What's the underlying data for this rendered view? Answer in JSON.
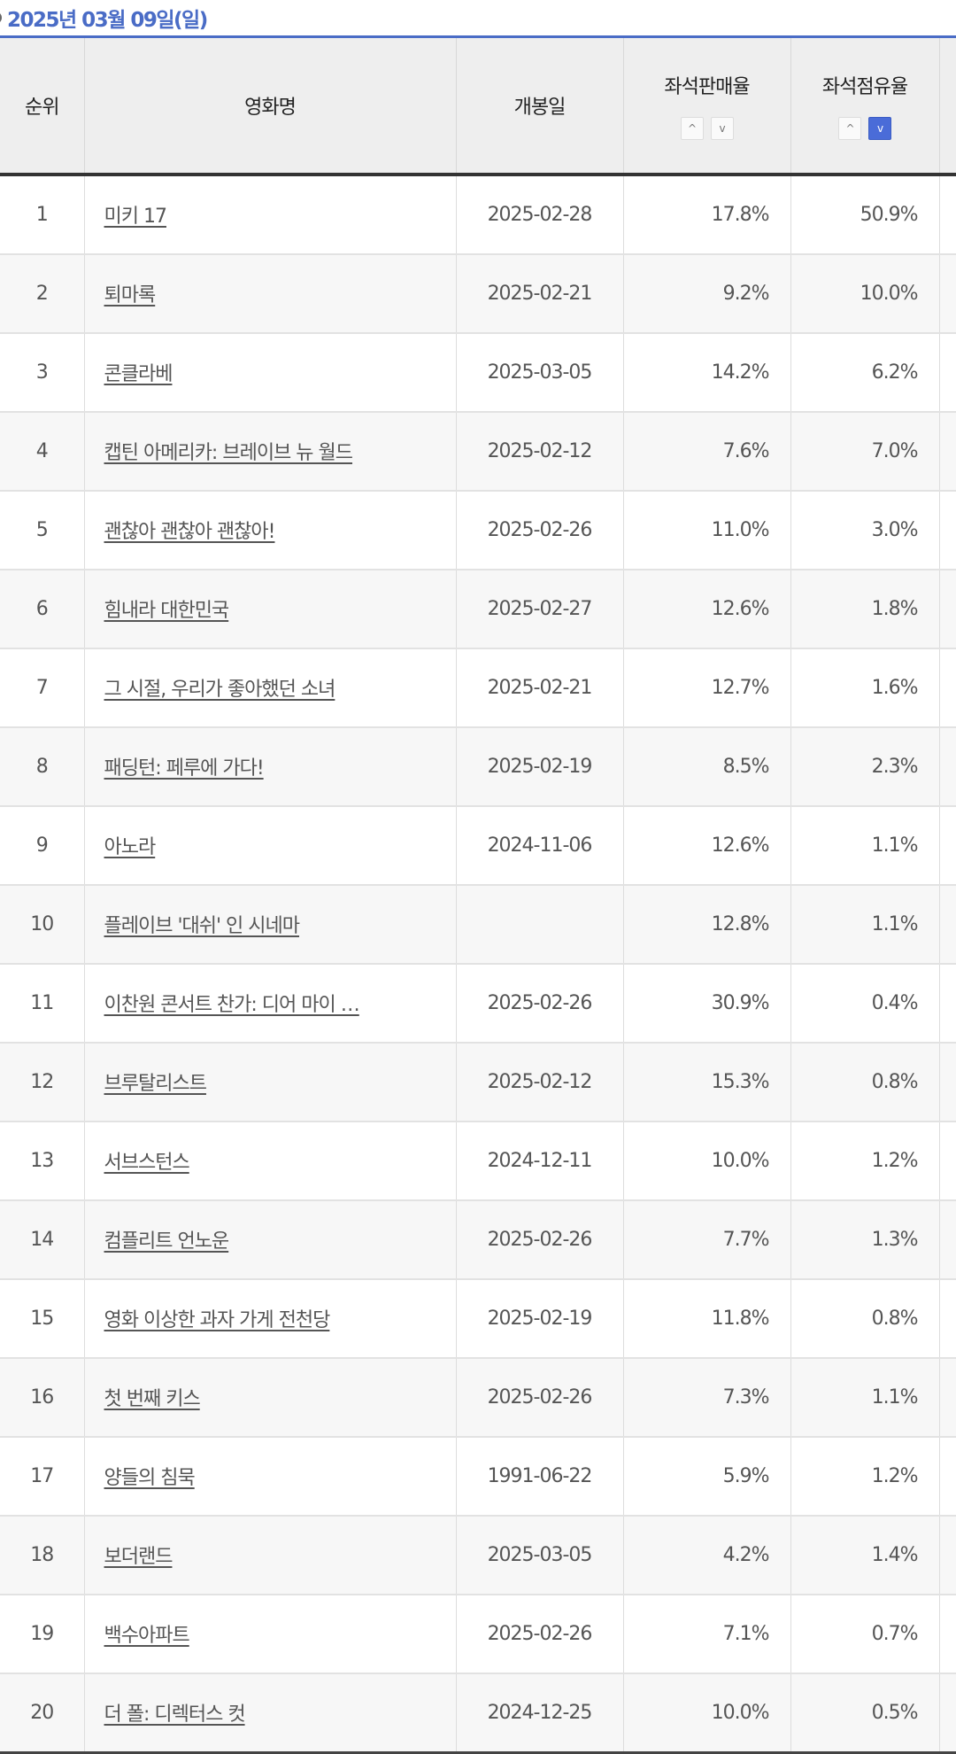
{
  "title": "2025년 03월 09일(일)",
  "headers": {
    "rank": "순위",
    "movie": "영화명",
    "release": "개봉일",
    "seat_sales": "좌석판매율",
    "seat_share": "좌석점유율"
  },
  "sort_icons": {
    "up": "^",
    "down": "v"
  },
  "rows": [
    {
      "rank": "1",
      "movie": "미키 17",
      "release": "2025-02-28",
      "seat_sales": "17.8%",
      "seat_share": "50.9%"
    },
    {
      "rank": "2",
      "movie": "퇴마록",
      "release": "2025-02-21",
      "seat_sales": "9.2%",
      "seat_share": "10.0%"
    },
    {
      "rank": "3",
      "movie": "콘클라베",
      "release": "2025-03-05",
      "seat_sales": "14.2%",
      "seat_share": "6.2%"
    },
    {
      "rank": "4",
      "movie": "캡틴 아메리카: 브레이브 뉴 월드",
      "release": "2025-02-12",
      "seat_sales": "7.6%",
      "seat_share": "7.0%"
    },
    {
      "rank": "5",
      "movie": "괜찮아 괜찮아 괜찮아!",
      "release": "2025-02-26",
      "seat_sales": "11.0%",
      "seat_share": "3.0%"
    },
    {
      "rank": "6",
      "movie": "힘내라 대한민국",
      "release": "2025-02-27",
      "seat_sales": "12.6%",
      "seat_share": "1.8%"
    },
    {
      "rank": "7",
      "movie": "그 시절, 우리가 좋아했던 소녀",
      "release": "2025-02-21",
      "seat_sales": "12.7%",
      "seat_share": "1.6%"
    },
    {
      "rank": "8",
      "movie": "패딩턴: 페루에 가다!",
      "release": "2025-02-19",
      "seat_sales": "8.5%",
      "seat_share": "2.3%"
    },
    {
      "rank": "9",
      "movie": "아노라",
      "release": "2024-11-06",
      "seat_sales": "12.6%",
      "seat_share": "1.1%"
    },
    {
      "rank": "10",
      "movie": "플레이브 '대쉬' 인 시네마",
      "release": "",
      "seat_sales": "12.8%",
      "seat_share": "1.1%"
    },
    {
      "rank": "11",
      "movie": "이찬원 콘서트 찬가: 디어 마이 …",
      "release": "2025-02-26",
      "seat_sales": "30.9%",
      "seat_share": "0.4%"
    },
    {
      "rank": "12",
      "movie": "브루탈리스트",
      "release": "2025-02-12",
      "seat_sales": "15.3%",
      "seat_share": "0.8%"
    },
    {
      "rank": "13",
      "movie": "서브스턴스",
      "release": "2024-12-11",
      "seat_sales": "10.0%",
      "seat_share": "1.2%"
    },
    {
      "rank": "14",
      "movie": "컴플리트 언노운",
      "release": "2025-02-26",
      "seat_sales": "7.7%",
      "seat_share": "1.3%"
    },
    {
      "rank": "15",
      "movie": "영화 이상한 과자 가게 전천당",
      "release": "2025-02-19",
      "seat_sales": "11.8%",
      "seat_share": "0.8%"
    },
    {
      "rank": "16",
      "movie": "첫 번째 키스",
      "release": "2025-02-26",
      "seat_sales": "7.3%",
      "seat_share": "1.1%"
    },
    {
      "rank": "17",
      "movie": "양들의 침묵",
      "release": "1991-06-22",
      "seat_sales": "5.9%",
      "seat_share": "1.2%"
    },
    {
      "rank": "18",
      "movie": "보더랜드",
      "release": "2025-03-05",
      "seat_sales": "4.2%",
      "seat_share": "1.4%"
    },
    {
      "rank": "19",
      "movie": "백수아파트",
      "release": "2025-02-26",
      "seat_sales": "7.1%",
      "seat_share": "0.7%"
    },
    {
      "rank": "20",
      "movie": "더 폴: 디렉터스 컷",
      "release": "2024-12-25",
      "seat_sales": "10.0%",
      "seat_share": "0.5%"
    }
  ]
}
